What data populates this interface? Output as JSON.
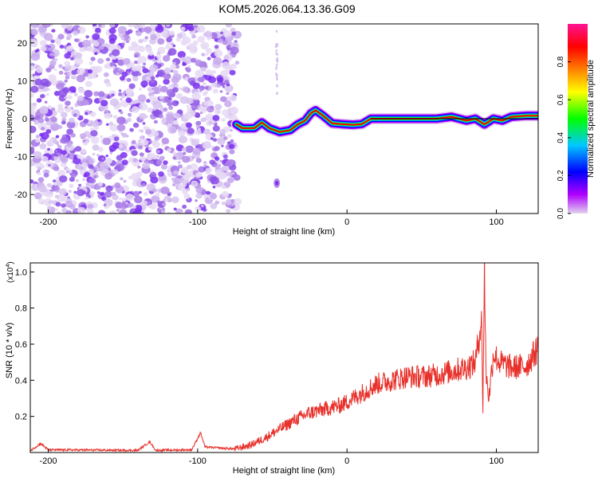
{
  "title": "KOM5.2026.064.13.36.G09",
  "chart_data": [
    {
      "type": "heatmap",
      "xlabel": "Height of straight line (km)",
      "ylabel": "Frequency (Hz)",
      "xlim": [
        -212,
        128
      ],
      "ylim": [
        -25,
        25
      ],
      "xticks": [
        -200,
        -100,
        0,
        100
      ],
      "xtick_labels": [
        "-200",
        "-100",
        "0",
        "100"
      ],
      "yticks": [
        -20,
        -10,
        0,
        10,
        20
      ],
      "ytick_labels": [
        "-20",
        "-10",
        "0",
        "10",
        "20"
      ],
      "noise_region_km": [
        -212,
        -73
      ],
      "signal_track": [
        {
          "x": -74,
          "y": -1.5
        },
        {
          "x": -70,
          "y": -2.5
        },
        {
          "x": -62,
          "y": -2.5
        },
        {
          "x": -57,
          "y": -1.0
        },
        {
          "x": -52,
          "y": -2.5
        },
        {
          "x": -45,
          "y": -3.5
        },
        {
          "x": -38,
          "y": -3.0
        },
        {
          "x": -33,
          "y": -1.5
        },
        {
          "x": -28,
          "y": -0.5
        },
        {
          "x": -24,
          "y": 1.5
        },
        {
          "x": -21,
          "y": 2.2
        },
        {
          "x": -16,
          "y": 0.8
        },
        {
          "x": -10,
          "y": -1.2
        },
        {
          "x": -4,
          "y": -1.4
        },
        {
          "x": 4,
          "y": -1.6
        },
        {
          "x": 10,
          "y": -1.4
        },
        {
          "x": 16,
          "y": 0.0
        },
        {
          "x": 60,
          "y": 0.0
        },
        {
          "x": 70,
          "y": 0.5
        },
        {
          "x": 80,
          "y": -0.5
        },
        {
          "x": 86,
          "y": 0.0
        },
        {
          "x": 92,
          "y": -1.5
        },
        {
          "x": 98,
          "y": 0.0
        },
        {
          "x": 104,
          "y": -0.5
        },
        {
          "x": 110,
          "y": 0.5
        },
        {
          "x": 120,
          "y": 0.8
        },
        {
          "x": 128,
          "y": 0.8
        }
      ],
      "spurious_blob": {
        "x": -47,
        "y": -17
      },
      "colorbar": {
        "label": "Normalized spectral amplitude",
        "range": [
          0,
          1
        ],
        "ticks": [
          0.0,
          0.2,
          0.4,
          0.6,
          0.8
        ],
        "tick_labels": [
          "0.0",
          "0.2",
          "0.4",
          "0.6",
          "0.8"
        ],
        "colors": [
          "#e0d4ec",
          "#b000ff",
          "#0000ff",
          "#00c8ff",
          "#00ff00",
          "#ffff00",
          "#ff8000",
          "#ff0000",
          "#ff1493"
        ]
      }
    },
    {
      "type": "line",
      "xlabel": "Height of straight line (km)",
      "ylabel": "SNR (10 * v/v)",
      "scale_label": "(x10",
      "scale_exponent": "4",
      "scale_close": ")",
      "xlim": [
        -212,
        128
      ],
      "ylim": [
        0,
        1.05
      ],
      "xticks": [
        -200,
        -100,
        0,
        100
      ],
      "xtick_labels": [
        "-200",
        "-100",
        "0",
        "100"
      ],
      "yticks": [
        0.2,
        0.4,
        0.6,
        0.8,
        1.0
      ],
      "ytick_labels": [
        "0.2",
        "0.4",
        "0.6",
        "0.8",
        "1.0"
      ],
      "color": "#e8302a",
      "series": [
        {
          "x": -212,
          "y": 0.01
        },
        {
          "x": -205,
          "y": 0.05
        },
        {
          "x": -200,
          "y": 0.015
        },
        {
          "x": -140,
          "y": 0.012
        },
        {
          "x": -132,
          "y": 0.06
        },
        {
          "x": -128,
          "y": 0.012
        },
        {
          "x": -104,
          "y": 0.015
        },
        {
          "x": -98,
          "y": 0.11
        },
        {
          "x": -95,
          "y": 0.03
        },
        {
          "x": -75,
          "y": 0.02
        },
        {
          "x": -65,
          "y": 0.04
        },
        {
          "x": -55,
          "y": 0.08
        },
        {
          "x": -45,
          "y": 0.13
        },
        {
          "x": -35,
          "y": 0.18
        },
        {
          "x": -25,
          "y": 0.22
        },
        {
          "x": -15,
          "y": 0.24
        },
        {
          "x": -5,
          "y": 0.26
        },
        {
          "x": 0,
          "y": 0.28
        },
        {
          "x": 10,
          "y": 0.33
        },
        {
          "x": 20,
          "y": 0.38
        },
        {
          "x": 30,
          "y": 0.4
        },
        {
          "x": 40,
          "y": 0.42
        },
        {
          "x": 50,
          "y": 0.42
        },
        {
          "x": 60,
          "y": 0.43
        },
        {
          "x": 70,
          "y": 0.45
        },
        {
          "x": 80,
          "y": 0.47
        },
        {
          "x": 86,
          "y": 0.5
        },
        {
          "x": 90,
          "y": 0.74
        },
        {
          "x": 91,
          "y": 0.25
        },
        {
          "x": 92,
          "y": 1.05
        },
        {
          "x": 93,
          "y": 0.45
        },
        {
          "x": 95,
          "y": 0.3
        },
        {
          "x": 98,
          "y": 0.55
        },
        {
          "x": 102,
          "y": 0.5
        },
        {
          "x": 110,
          "y": 0.47
        },
        {
          "x": 120,
          "y": 0.48
        },
        {
          "x": 128,
          "y": 0.58
        }
      ]
    }
  ]
}
